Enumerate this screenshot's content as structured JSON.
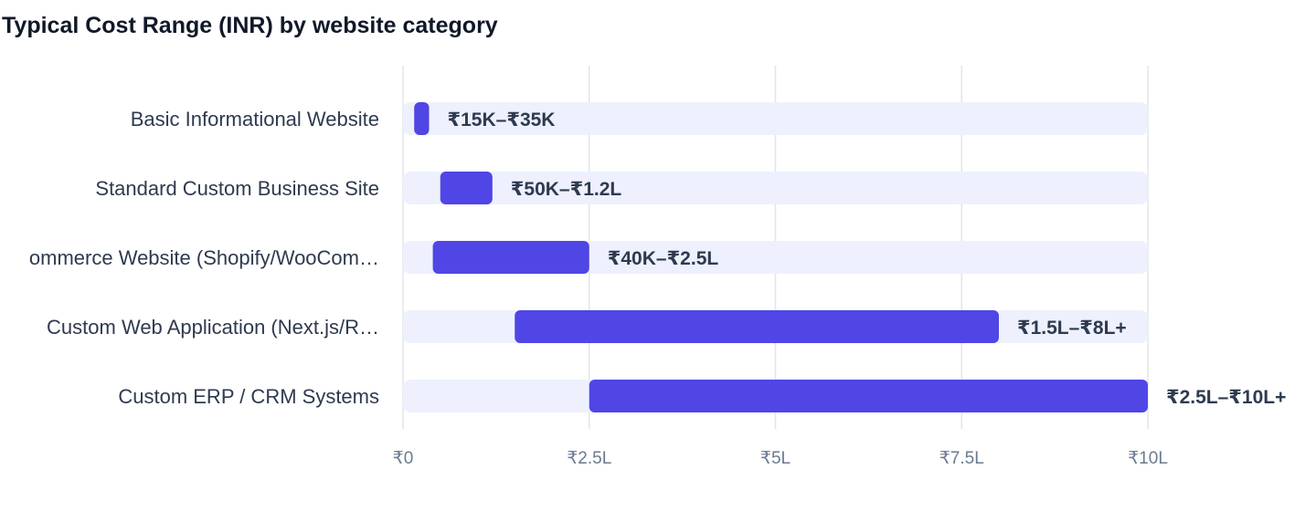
{
  "chart_data": {
    "type": "bar",
    "orientation": "horizontal",
    "subtype": "floating-range",
    "title": "Typical Cost Range (INR) by website category",
    "xlabel": "",
    "ylabel": "",
    "xlim": [
      0,
      1000000
    ],
    "grid": true,
    "legend": "none",
    "x_ticks": [
      {
        "value": 0,
        "label": "₹0"
      },
      {
        "value": 250000,
        "label": "₹2.5L"
      },
      {
        "value": 500000,
        "label": "₹5L"
      },
      {
        "value": 750000,
        "label": "₹7.5L"
      },
      {
        "value": 1000000,
        "label": "₹10L"
      }
    ],
    "categories": [
      "Basic Informational Website",
      "Standard Custom Business Site",
      "ommerce Website (Shopify/WooCom…",
      "Custom Web Application (Next.js/R…",
      "Custom ERP / CRM Systems"
    ],
    "ranges": [
      {
        "low": 15000,
        "high": 35000,
        "label": "₹15K–₹35K"
      },
      {
        "low": 50000,
        "high": 120000,
        "label": "₹50K–₹1.2L"
      },
      {
        "low": 40000,
        "high": 250000,
        "label": "₹40K–₹2.5L"
      },
      {
        "low": 150000,
        "high": 800000,
        "label": "₹1.5L–₹8L+"
      },
      {
        "low": 250000,
        "high": 1000000,
        "label": "₹2.5L–₹10L+"
      }
    ],
    "colors": {
      "bar": "#4f46e5",
      "track": "#eef1fd",
      "grid": "#e2e5ea"
    }
  }
}
